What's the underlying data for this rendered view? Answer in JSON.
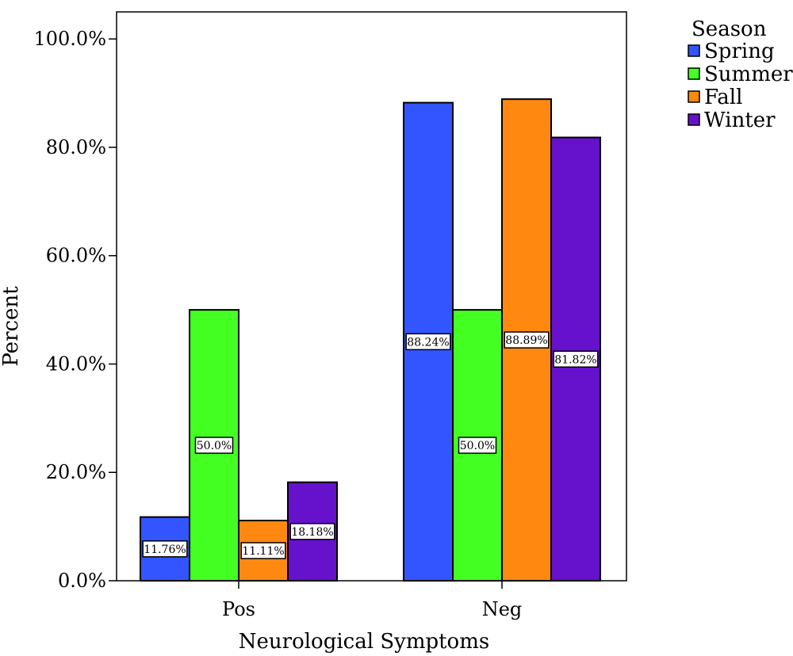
{
  "chart_data": {
    "type": "bar",
    "xlabel": "Neurological Symptoms",
    "ylabel": "Percent",
    "ylim": [
      0,
      105
    ],
    "y_ticks": [
      0,
      20,
      40,
      60,
      80,
      100
    ],
    "y_tick_labels": [
      "0.0%",
      "20.0%",
      "40.0%",
      "60.0%",
      "80.0%",
      "100.0%"
    ],
    "categories": [
      "Pos",
      "Neg"
    ],
    "series": [
      {
        "name": "Spring",
        "color": "#3355ff",
        "values": [
          11.76,
          88.24
        ],
        "labels": [
          "11.76%",
          "88.24%"
        ]
      },
      {
        "name": "Summer",
        "color": "#44ff22",
        "values": [
          50.0,
          50.0
        ],
        "labels": [
          "50.0%",
          "50.0%"
        ]
      },
      {
        "name": "Fall",
        "color": "#ff8811",
        "values": [
          11.11,
          88.89
        ],
        "labels": [
          "11.11%",
          "88.89%"
        ]
      },
      {
        "name": "Winter",
        "color": "#6611cc",
        "values": [
          18.18,
          81.82
        ],
        "labels": [
          "18.18%",
          "81.82%"
        ]
      }
    ],
    "legend": {
      "title": "Season",
      "placement": "top-right, outside plot"
    },
    "grid": false
  }
}
